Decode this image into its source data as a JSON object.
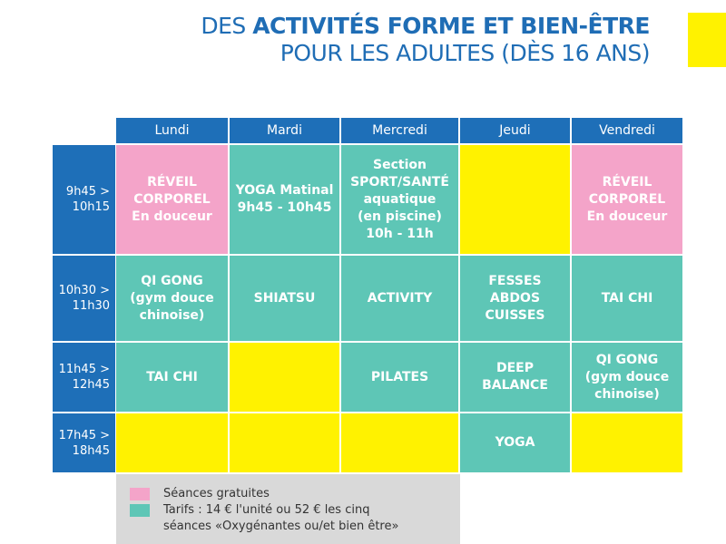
{
  "header": {
    "title_light": "DES",
    "title_bold": "ACTIVITÉS FORME ET BIEN-ÊTRE",
    "subtitle": "POUR LES ADULTES (DÈS 16 ANS)"
  },
  "table": {
    "days": [
      "Lundi",
      "Mardi",
      "Mercredi",
      "Jeudi",
      "Vendredi"
    ],
    "rows": [
      {
        "time": "9h45 >\n10h15",
        "cells": [
          {
            "kind": "free",
            "text": "RÉVEIL\nCORPOREL\nEn douceur"
          },
          {
            "kind": "paid",
            "text": "YOGA Matinal\n9h45 - 10h45"
          },
          {
            "kind": "paid",
            "text": "Section\nSPORT/SANTÉ\naquatique\n(en piscine)\n10h - 11h"
          },
          {
            "kind": "empty"
          },
          {
            "kind": "free",
            "text": "RÉVEIL\nCORPOREL\nEn douceur"
          }
        ]
      },
      {
        "time": "10h30 >\n11h30",
        "cells": [
          {
            "kind": "paid",
            "text": "QI GONG\n(gym douce\nchinoise)"
          },
          {
            "kind": "paid",
            "text": "SHIATSU"
          },
          {
            "kind": "paid",
            "text": "ACTIVITY"
          },
          {
            "kind": "paid",
            "text": "FESSES\nABDOS\nCUISSES"
          },
          {
            "kind": "paid",
            "text": "TAI CHI"
          }
        ]
      },
      {
        "time": "11h45 >\n12h45",
        "cells": [
          {
            "kind": "paid",
            "text": "TAI CHI"
          },
          {
            "kind": "empty"
          },
          {
            "kind": "paid",
            "text": "PILATES"
          },
          {
            "kind": "paid",
            "text": "DEEP\nBALANCE"
          },
          {
            "kind": "paid",
            "text": "QI GONG\n(gym douce\nchinoise)"
          }
        ]
      },
      {
        "time": "17h45 >\n18h45",
        "cells": [
          {
            "kind": "empty"
          },
          {
            "kind": "empty"
          },
          {
            "kind": "empty"
          },
          {
            "kind": "paid",
            "text": "YOGA"
          },
          {
            "kind": "empty"
          }
        ]
      }
    ]
  },
  "legend": [
    {
      "kind": "free",
      "label": "Séances gratuites"
    },
    {
      "kind": "paid",
      "label": "Tarifs : 14 € l'unité ou 52 € les cinq\nséances «Oxygénantes ou/et bien être»"
    }
  ]
}
